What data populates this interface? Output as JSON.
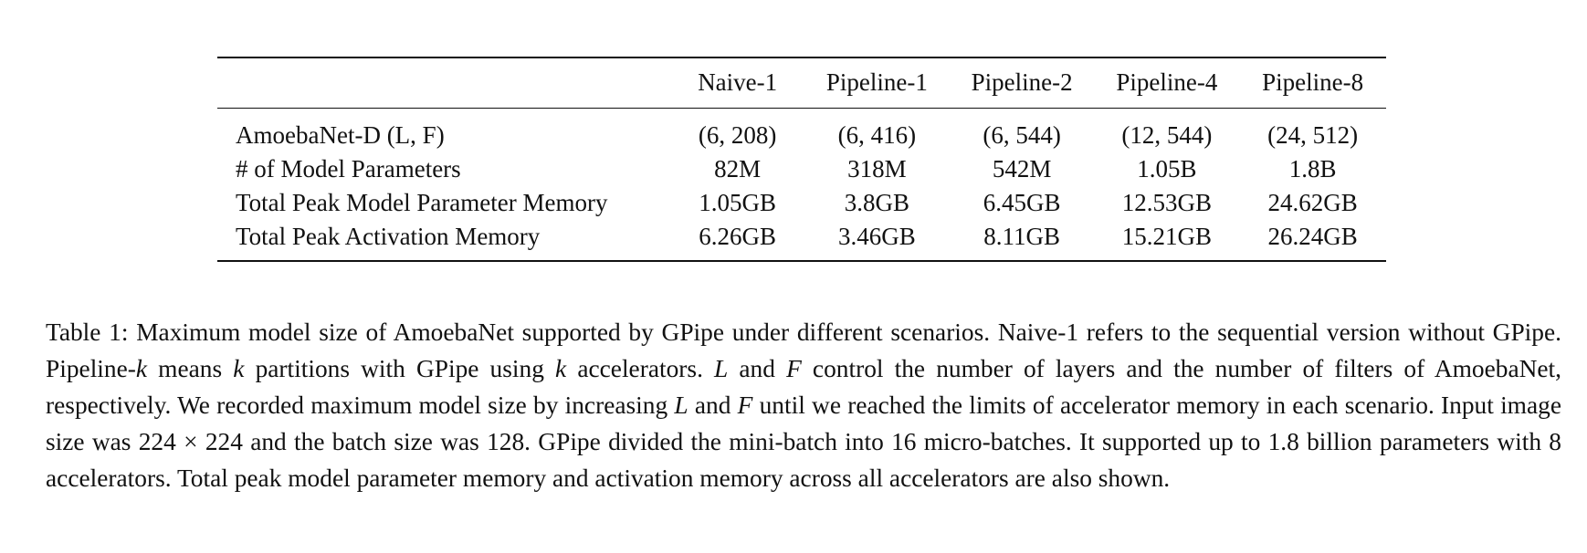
{
  "table": {
    "headers": [
      "",
      "Naive-1",
      "Pipeline-1",
      "Pipeline-2",
      "Pipeline-4",
      "Pipeline-8"
    ],
    "rows": [
      {
        "label": "AmoebaNet-D (L, F)",
        "cells": [
          "(6, 208)",
          "(6, 416)",
          "(6, 544)",
          "(12, 544)",
          "(24, 512)"
        ]
      },
      {
        "label": "# of Model Parameters",
        "cells": [
          "82M",
          "318M",
          "542M",
          "1.05B",
          "1.8B"
        ]
      },
      {
        "label": "Total Peak Model Parameter Memory",
        "cells": [
          "1.05GB",
          "3.8GB",
          "6.45GB",
          "12.53GB",
          "24.62GB"
        ]
      },
      {
        "label": "Total Peak Activation Memory",
        "cells": [
          "6.26GB",
          "3.46GB",
          "8.11GB",
          "15.21GB",
          "26.24GB"
        ]
      }
    ]
  },
  "caption": {
    "p01": "Table 1: Maximum model size of AmoebaNet supported by GPipe under different scenarios. Naive-1 refers to the sequential version without GPipe. Pipeline-",
    "m01": "k",
    "p02": " means ",
    "m02": "k",
    "p03": " partitions with GPipe using ",
    "m03": "k",
    "p04": " accelerators. ",
    "m04": "L",
    "p05": " and ",
    "m05": "F",
    "p06": " control the number of layers and the number of filters of AmoebaNet, respectively. We recorded maximum model size by increasing ",
    "m06": "L",
    "p07": " and ",
    "m07": "F",
    "p08": " until we reached the limits of accelerator memory in each scenario. Input image size was 224 × 224 and the batch size was 128. GPipe divided the mini-batch into 16 micro-batches. It supported up to 1.8 billion parameters with 8 accelerators. Total peak model parameter memory and activation memory across all accelerators are also shown."
  }
}
